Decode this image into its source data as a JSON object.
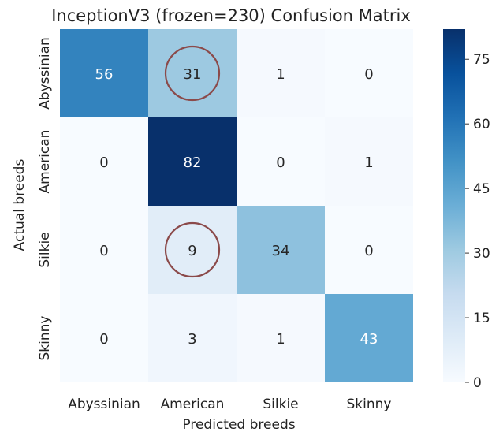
{
  "chart_data": {
    "type": "heatmap",
    "title": "InceptionV3 (frozen=230) Confusion Matrix",
    "xlabel": "Predicted breeds",
    "ylabel": "Actual breeds",
    "x_categories": [
      "Abyssinian",
      "American",
      "Silkie",
      "Skinny"
    ],
    "y_categories": [
      "Abyssinian",
      "American",
      "Silkie",
      "Skinny"
    ],
    "values": [
      [
        56,
        31,
        1,
        0
      ],
      [
        0,
        82,
        0,
        1
      ],
      [
        0,
        9,
        34,
        0
      ],
      [
        0,
        3,
        1,
        43
      ]
    ],
    "colorbar": {
      "range": [
        0,
        82
      ],
      "ticks": [
        0,
        15,
        30,
        45,
        60,
        75
      ],
      "colormap": "Blues"
    },
    "highlighted_cells": [
      [
        0,
        1
      ],
      [
        2,
        1
      ]
    ],
    "highlight_color": "#8b4a4a"
  }
}
